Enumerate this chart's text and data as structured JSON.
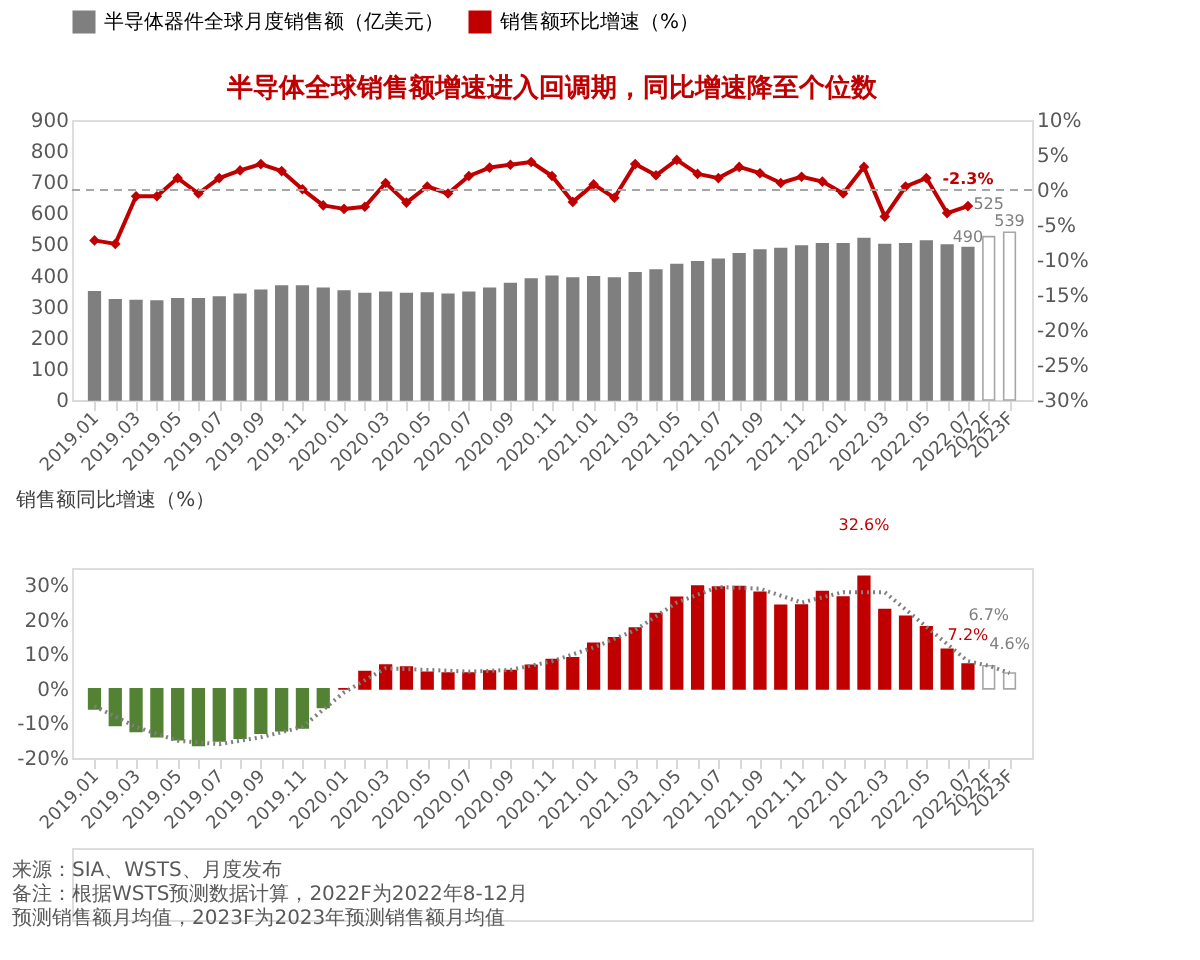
{
  "chart_data": [
    {
      "type": "bar",
      "title": "半导体全球销售额增速进入回调期，同比增速降至个位数",
      "categories": [
        "2019.01",
        null,
        "2019.03",
        null,
        "2019.05",
        null,
        "2019.07",
        null,
        "2019.09",
        null,
        "2019.11",
        null,
        "2020.01",
        null,
        "2020.03",
        null,
        "2020.05",
        null,
        "2020.07",
        null,
        "2020.09",
        null,
        "2020.11",
        null,
        "2021.01",
        null,
        "2021.03",
        null,
        "2021.05",
        null,
        "2021.07",
        null,
        "2021.09",
        null,
        "2021.11",
        null,
        "2022.01",
        null,
        "2022.03",
        null,
        "2022.05",
        null,
        "2022.07",
        "2022F",
        "2023F"
      ],
      "series": [
        {
          "name": "半导体器件全球月度销售额（亿美元）",
          "color": "#7f7f7f",
          "colors": [
            "#7f7f7f",
            "#7f7f7f",
            "#7f7f7f",
            "#7f7f7f",
            "#7f7f7f",
            "#7f7f7f",
            "#7f7f7f",
            "#7f7f7f",
            "#7f7f7f",
            "#7f7f7f",
            "#7f7f7f",
            "#7f7f7f",
            "#7f7f7f",
            "#7f7f7f",
            "#7f7f7f",
            "#7f7f7f",
            "#7f7f7f",
            "#7f7f7f",
            "#7f7f7f",
            "#7f7f7f",
            "#7f7f7f",
            "#7f7f7f",
            "#7f7f7f",
            "#7f7f7f",
            "#7f7f7f",
            "#7f7f7f",
            "#7f7f7f",
            "#7f7f7f",
            "#7f7f7f",
            "#7f7f7f",
            "#7f7f7f",
            "#7f7f7f",
            "#7f7f7f",
            "#7f7f7f",
            "#7f7f7f",
            "#7f7f7f",
            "#7f7f7f",
            "#7f7f7f",
            "#7f7f7f",
            "#7f7f7f",
            "#7f7f7f",
            "#7f7f7f",
            "#7f7f7f",
            "#ffffff",
            "#ffffff"
          ],
          "values": [
            348,
            322,
            320,
            318,
            325,
            325,
            331,
            340,
            353,
            366,
            366,
            359,
            350,
            342,
            346,
            342,
            344,
            340,
            346,
            359,
            374,
            389,
            398,
            392,
            396,
            392,
            409,
            418,
            435,
            444,
            452,
            470,
            482,
            487,
            495,
            502,
            502,
            519,
            500,
            502,
            511,
            498,
            490,
            525,
            539
          ],
          "value_labels": [
            null,
            null,
            null,
            null,
            null,
            null,
            null,
            null,
            null,
            null,
            null,
            null,
            null,
            null,
            null,
            null,
            null,
            null,
            null,
            null,
            null,
            null,
            null,
            null,
            null,
            null,
            null,
            null,
            null,
            null,
            null,
            null,
            null,
            null,
            null,
            null,
            null,
            null,
            null,
            null,
            null,
            null,
            "490",
            "525",
            "539"
          ]
        },
        {
          "name": "销售额环比增速（%）",
          "type": "line",
          "axis": "y2",
          "color": "#c00000",
          "marker": "diamond",
          "line_style": "solid",
          "values": [
            -7.2,
            -7.7,
            -0.9,
            -0.9,
            1.7,
            -0.5,
            1.7,
            2.8,
            3.7,
            2.7,
            0.1,
            -2.2,
            -2.7,
            -2.4,
            1.0,
            -1.8,
            0.5,
            -0.5,
            2.0,
            3.2,
            3.6,
            4.0,
            2.0,
            -1.7,
            0.8,
            -1.1,
            3.7,
            2.1,
            4.3,
            2.3,
            1.7,
            3.3,
            2.4,
            1.0,
            1.9,
            1.2,
            -0.5,
            3.3,
            -3.8,
            0.5,
            1.7,
            -3.3,
            -2.3,
            null,
            null
          ],
          "value_labels": [
            null,
            null,
            null,
            null,
            null,
            null,
            null,
            null,
            null,
            null,
            null,
            null,
            null,
            null,
            null,
            null,
            null,
            null,
            null,
            null,
            null,
            null,
            null,
            null,
            null,
            null,
            null,
            null,
            null,
            null,
            null,
            null,
            null,
            null,
            null,
            null,
            null,
            null,
            null,
            null,
            null,
            null,
            "-2.3%",
            null,
            null
          ]
        }
      ],
      "ylim": [
        0,
        900
      ],
      "yticks": [
        0,
        100,
        200,
        300,
        400,
        500,
        600,
        700,
        800,
        900
      ],
      "y2lim": [
        -30,
        10
      ],
      "y2ticks": [
        {
          "value": -30,
          "label": "-30%"
        },
        {
          "value": -25,
          "label": "-25%"
        },
        {
          "value": -20,
          "label": "-20%"
        },
        {
          "value": -15,
          "label": "-15%"
        },
        {
          "value": -10,
          "label": "-10%"
        },
        {
          "value": -5,
          "label": "-5%"
        },
        {
          "value": 0,
          "label": "0%"
        },
        {
          "value": 5,
          "label": "5%"
        },
        {
          "value": 10,
          "label": "10%"
        }
      ],
      "ref_lines": [
        {
          "axis": "y2",
          "value": 0,
          "color": "#a6a6a6",
          "line_style": "dashed"
        }
      ],
      "legend": "top",
      "grid": false
    },
    {
      "type": "bar",
      "title": "销售额同比增速（%）",
      "categories": [
        "2019.01",
        null,
        "2019.03",
        null,
        "2019.05",
        null,
        "2019.07",
        null,
        "2019.09",
        null,
        "2019.11",
        null,
        "2020.01",
        null,
        "2020.03",
        null,
        "2020.05",
        null,
        "2020.07",
        null,
        "2020.09",
        null,
        "2020.11",
        null,
        "2021.01",
        null,
        "2021.03",
        null,
        "2021.05",
        null,
        "2021.07",
        null,
        "2021.09",
        null,
        "2021.11",
        null,
        "2022.01",
        null,
        "2022.03",
        null,
        "2022.05",
        null,
        "2022.07",
        "2022F",
        "2023F"
      ],
      "series": [
        {
          "color": "#c00000",
          "colors": [
            "#548235",
            "#548235",
            "#548235",
            "#548235",
            "#548235",
            "#548235",
            "#548235",
            "#548235",
            "#548235",
            "#548235",
            "#548235",
            "#548235",
            "#c00000",
            "#c00000",
            "#c00000",
            "#c00000",
            "#c00000",
            "#c00000",
            "#c00000",
            "#c00000",
            "#c00000",
            "#c00000",
            "#c00000",
            "#c00000",
            "#c00000",
            "#c00000",
            "#c00000",
            "#c00000",
            "#c00000",
            "#c00000",
            "#c00000",
            "#c00000",
            "#c00000",
            "#c00000",
            "#c00000",
            "#c00000",
            "#c00000",
            "#c00000",
            "#c00000",
            "#c00000",
            "#c00000",
            "#c00000",
            "#c00000",
            "#ffffff",
            "#ffffff"
          ],
          "values": [
            -5.8,
            -10.6,
            -12.3,
            -13.8,
            -14.7,
            -16.4,
            -15.1,
            -14.3,
            -12.8,
            -12.1,
            -11.3,
            -5.4,
            0,
            5.0,
            6.9,
            6.3,
            4.8,
            4.6,
            4.6,
            5.2,
            5.3,
            6.8,
            8.5,
            9.0,
            13.2,
            14.8,
            17.6,
            21.8,
            26.5,
            29.8,
            29.5,
            29.6,
            28.0,
            24.2,
            24.3,
            28.2,
            26.6,
            32.6,
            23.0,
            21.0,
            18.0,
            11.5,
            7.2,
            6.7,
            4.6
          ],
          "value_labels": [
            null,
            null,
            null,
            null,
            null,
            null,
            null,
            null,
            null,
            null,
            null,
            null,
            null,
            null,
            null,
            null,
            null,
            null,
            null,
            null,
            null,
            null,
            null,
            null,
            null,
            null,
            null,
            null,
            null,
            null,
            null,
            null,
            null,
            null,
            null,
            null,
            null,
            "32.6%",
            null,
            null,
            null,
            null,
            "7.2%",
            "6.7%",
            "4.6%"
          ]
        },
        {
          "type": "line",
          "color": "#7f7f7f",
          "line_style": "dotted",
          "marker": "none",
          "x": [
            "2019.01",
            "2019.03",
            "2019.05",
            "2019.07",
            "2019.09",
            "2019.11",
            "2020.01",
            "2020.03",
            "2020.05",
            "2020.07",
            "2020.09",
            "2020.11",
            "2021.01",
            "2021.03",
            "2021.05",
            "2021.07",
            "2021.09",
            "2021.11",
            "2022.01",
            "2022.03",
            "2022.05",
            "2022.07",
            "2022F",
            "2023F"
          ],
          "values": [
            -5,
            -11,
            -15,
            -16,
            -14,
            -11,
            -1,
            6,
            5.5,
            5,
            5.5,
            8,
            12,
            17,
            25,
            29.5,
            29,
            25,
            28,
            28,
            18,
            8,
            6.7,
            4.6
          ]
        }
      ],
      "ylim": [
        -20,
        35
      ],
      "yticks": [
        {
          "value": -20,
          "label": "-20%"
        },
        {
          "value": -10,
          "label": "-10%"
        },
        {
          "value": 0,
          "label": "0%"
        },
        {
          "value": 10,
          "label": "10%"
        },
        {
          "value": 20,
          "label": "20%"
        },
        {
          "value": 30,
          "label": "30%"
        }
      ],
      "grid": false,
      "annotations": [
        "来源：SIA、WSTS、月度发布",
        "备注：根据WSTS预测数据计算，2022F为2022年8-12月",
        "预测销售额月均值，2023F为2023年预测销售额月均值"
      ]
    }
  ]
}
